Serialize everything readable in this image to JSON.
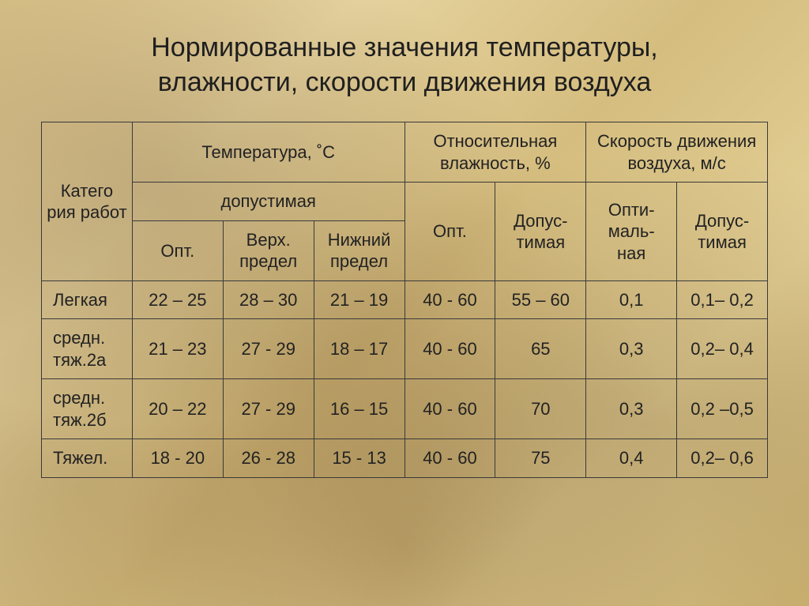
{
  "title_line1": "Нормированные значения температуры,",
  "title_line2": "влажности, скорости движения воздуха",
  "headers": {
    "category": "Катего\nрия работ",
    "temperature": "Температура, ˚С",
    "humidity": "Относительная влажность, %",
    "speed": "Скорость движения воздуха, м/с",
    "allowable": "допустимая",
    "opt": "Опт.",
    "upper": "Верх. предел",
    "lower": "Нижний предел",
    "opt_short": "Опт.",
    "hum_allow": "Допус-\nтимая",
    "sp_opt": "Опти-\nмаль-\nная",
    "sp_allow": "Допус-\nтимая"
  },
  "rows": [
    {
      "label": "Легкая",
      "t_opt": "22 – 25",
      "t_up": "28 – 30",
      "t_low": "21 – 19",
      "h_opt": "40 - 60",
      "h_allow": "55 – 60",
      "s_opt": "0,1",
      "s_allow": "0,1– 0,2"
    },
    {
      "label": "средн. тяж.2а",
      "t_opt": "21 – 23",
      "t_up": "27 - 29",
      "t_low": "18 – 17",
      "h_opt": "40 - 60",
      "h_allow": "65",
      "s_opt": "0,3",
      "s_allow": "0,2– 0,4"
    },
    {
      "label": "средн. тяж.2б",
      "t_opt": "20 – 22",
      "t_up": "27 - 29",
      "t_low": "16 – 15",
      "h_opt": "40 - 60",
      "h_allow": "70",
      "s_opt": "0,3",
      "s_allow": "0,2 –0,5"
    },
    {
      "label": "Тяжел.",
      "t_opt": "18 - 20",
      "t_up": "26 - 28",
      "t_low": "15 - 13",
      "h_opt": "40 - 60",
      "h_allow": "75",
      "s_opt": "0,4",
      "s_allow": "0,2– 0,6"
    }
  ],
  "style": {
    "border_color": "#3a3a3a",
    "text_color": "#222222",
    "title_fontsize": 34,
    "cell_fontsize": 22,
    "background_palette": [
      "#d8c088",
      "#e6d39f",
      "#d5bd7f",
      "#e3cf95",
      "#cdb473"
    ]
  }
}
